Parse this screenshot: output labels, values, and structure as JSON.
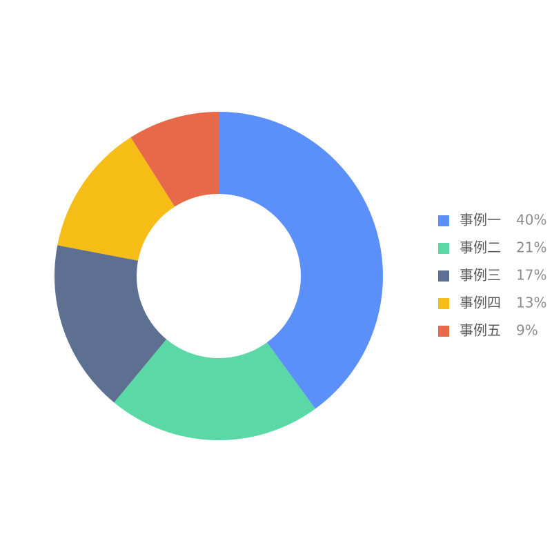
{
  "chart_data": {
    "type": "donut",
    "categories": [
      "事例一",
      "事例二",
      "事例三",
      "事例四",
      "事例五"
    ],
    "values": [
      40,
      21,
      17,
      13,
      9
    ],
    "value_labels": [
      "40%",
      "21%",
      "17%",
      "13%",
      "9%"
    ],
    "colors": [
      "#5b8ff9",
      "#5ad8a6",
      "#5d7092",
      "#f6bd16",
      "#e8684a"
    ],
    "legend": "right"
  }
}
